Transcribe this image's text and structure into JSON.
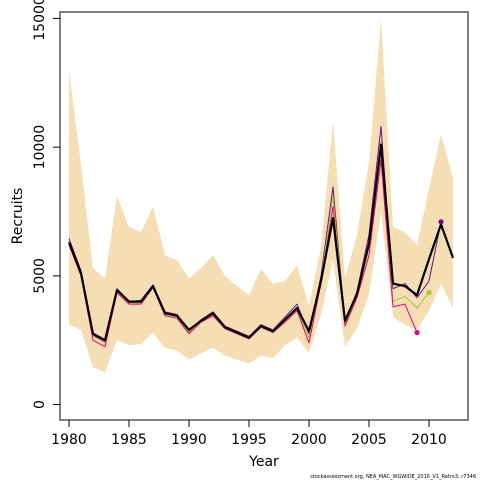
{
  "chart_data": {
    "type": "line",
    "title": "",
    "xlabel": "Year",
    "ylabel": "Recruits",
    "xlim": [
      1979.2,
      1982.2
    ],
    "x_range": [
      1979.25,
      1992.9
    ],
    "xlim_data": [
      1979.25,
      2013.25
    ],
    "ylim": [
      -600,
      15250
    ],
    "x_ticks": [
      "1980",
      "1985",
      "1990",
      "1995",
      "2000",
      "2005",
      "2010"
    ],
    "y_ticks": [
      "0",
      "5000",
      "10000",
      "15000"
    ],
    "credit": "stockassessment.org, NEA_MAC_WGWIDE_2016_V1_Retro3, r7346",
    "colors": {
      "band": "#f5deb3",
      "main": "#000000",
      "retro1": "#6a0d83",
      "retro2": "#a0c832",
      "retro3": "#e6007e"
    },
    "band": {
      "years": [
        1980,
        1981,
        1982,
        1983,
        1984,
        1985,
        1986,
        1987,
        1988,
        1989,
        1990,
        1991,
        1992,
        1993,
        1994,
        1995,
        1996,
        1997,
        1998,
        1999,
        2000,
        2001,
        2002,
        2003,
        2004,
        2005,
        2006,
        2007,
        2008,
        2009,
        2010,
        2011,
        2012
      ],
      "upper": [
        13000,
        9300,
        5300,
        4900,
        8100,
        6900,
        6700,
        7700,
        5800,
        5600,
        4900,
        5300,
        5800,
        5000,
        4600,
        4250,
        5250,
        4700,
        4800,
        5400,
        3850,
        6100,
        11000,
        4900,
        6600,
        9400,
        15000,
        6900,
        6700,
        6200,
        8400,
        10500,
        8800
      ],
      "lower": [
        3100,
        2900,
        1450,
        1250,
        2500,
        2300,
        2350,
        2800,
        2200,
        2100,
        1750,
        2000,
        2200,
        1900,
        1750,
        1600,
        1900,
        1800,
        2300,
        2600,
        2000,
        3500,
        5600,
        2250,
        2950,
        4300,
        7500,
        3400,
        3100,
        2900,
        3650,
        4700,
        3750
      ]
    },
    "series": [
      {
        "name": "",
        "role": "main",
        "years": [
          1980,
          1981,
          1982,
          1983,
          1984,
          1985,
          1986,
          1987,
          1988,
          1989,
          1990,
          1991,
          1992,
          1993,
          1994,
          1995,
          1996,
          1997,
          1998,
          1999,
          2000,
          2001,
          2002,
          2003,
          2004,
          2005,
          2006,
          2007,
          2008,
          2009,
          2010,
          2011,
          2012
        ],
        "values": [
          6300,
          5100,
          2750,
          2500,
          4450,
          4000,
          4000,
          4600,
          3550,
          3450,
          2900,
          3250,
          3550,
          3000,
          2800,
          2600,
          3050,
          2850,
          3300,
          3750,
          2850,
          4800,
          7250,
          3250,
          4300,
          6250,
          10100,
          4700,
          4600,
          4250,
          5650,
          7000,
          5700
        ]
      },
      {
        "name": "",
        "role": "retro1",
        "years": [
          1980,
          1981,
          1982,
          1983,
          1984,
          1985,
          1986,
          1987,
          1988,
          1989,
          1990,
          1991,
          1992,
          1993,
          1994,
          1995,
          1996,
          1997,
          1998,
          1999,
          2000,
          2001,
          2002,
          2003,
          2004,
          2005,
          2006,
          2007,
          2008,
          2009,
          2010,
          2011
        ],
        "values": [
          6450,
          5200,
          2700,
          2450,
          4500,
          4000,
          4050,
          4650,
          3600,
          3500,
          2850,
          3300,
          3600,
          3050,
          2850,
          2650,
          3100,
          2900,
          3400,
          3900,
          2750,
          5000,
          8450,
          3150,
          4400,
          6600,
          10800,
          4500,
          4700,
          4150,
          4800,
          7100
        ]
      },
      {
        "name": "",
        "role": "retro2",
        "years": [
          1980,
          1981,
          1982,
          1983,
          1984,
          1985,
          1986,
          1987,
          1988,
          1989,
          1990,
          1991,
          1992,
          1993,
          1994,
          1995,
          1996,
          1997,
          1998,
          1999,
          2000,
          2001,
          2002,
          2003,
          2004,
          2005,
          2006,
          2007,
          2008,
          2009,
          2010
        ],
        "values": [
          6350,
          5100,
          2650,
          2400,
          4400,
          3950,
          3950,
          4600,
          3500,
          3400,
          2800,
          3250,
          3500,
          3000,
          2800,
          2600,
          3050,
          2850,
          3250,
          3700,
          2600,
          4850,
          8100,
          3100,
          4250,
          6100,
          10200,
          4000,
          4200,
          3750,
          4350
        ]
      },
      {
        "name": "",
        "role": "retro3",
        "years": [
          1980,
          1981,
          1982,
          1983,
          1984,
          1985,
          1986,
          1987,
          1988,
          1989,
          1990,
          1991,
          1992,
          1993,
          1994,
          1995,
          1996,
          1997,
          1998,
          1999,
          2000,
          2001,
          2002,
          2003,
          2004,
          2005,
          2006,
          2007,
          2008,
          2009
        ],
        "values": [
          6200,
          5000,
          2500,
          2250,
          4350,
          3900,
          3900,
          4550,
          3450,
          3350,
          2750,
          3200,
          3450,
          2950,
          2750,
          2550,
          3000,
          2800,
          3200,
          3650,
          2400,
          4700,
          7700,
          3050,
          4150,
          5800,
          9500,
          3800,
          3900,
          2800
        ]
      }
    ],
    "end_points": [
      {
        "role": "retro1",
        "x": 2011,
        "y": 7100
      },
      {
        "role": "retro2",
        "x": 2010,
        "y": 4350
      },
      {
        "role": "retro3",
        "x": 2009,
        "y": 2800
      }
    ],
    "grid": false,
    "legend": "none"
  }
}
